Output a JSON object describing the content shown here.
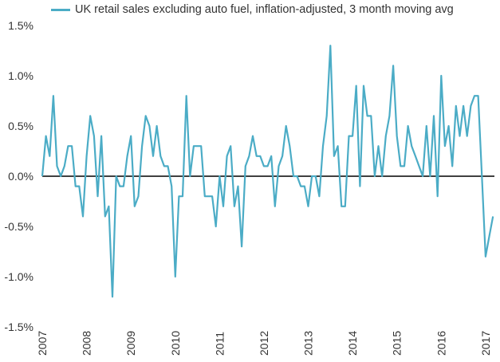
{
  "chart_data": {
    "type": "line",
    "title": "",
    "xlabel": "",
    "ylabel": "",
    "series": [
      {
        "name": "UK retail sales excluding auto fuel, inflation-adjusted, 3 month moving avg",
        "color": "#4bacc6",
        "x": [
          2007.0,
          2007.083,
          2007.167,
          2007.25,
          2007.333,
          2007.417,
          2007.5,
          2007.583,
          2007.667,
          2007.75,
          2007.833,
          2007.917,
          2008.0,
          2008.083,
          2008.167,
          2008.25,
          2008.333,
          2008.417,
          2008.5,
          2008.583,
          2008.667,
          2008.75,
          2008.833,
          2008.917,
          2009.0,
          2009.083,
          2009.167,
          2009.25,
          2009.333,
          2009.417,
          2009.5,
          2009.583,
          2009.667,
          2009.75,
          2009.833,
          2009.917,
          2010.0,
          2010.083,
          2010.167,
          2010.25,
          2010.333,
          2010.417,
          2010.5,
          2010.583,
          2010.667,
          2010.75,
          2010.833,
          2010.917,
          2011.0,
          2011.083,
          2011.167,
          2011.25,
          2011.333,
          2011.417,
          2011.5,
          2011.583,
          2011.667,
          2011.75,
          2011.833,
          2011.917,
          2012.0,
          2012.083,
          2012.167,
          2012.25,
          2012.333,
          2012.417,
          2012.5,
          2012.583,
          2012.667,
          2012.75,
          2012.833,
          2012.917,
          2013.0,
          2013.083,
          2013.167,
          2013.25,
          2013.333,
          2013.417,
          2013.5,
          2013.583,
          2013.667,
          2013.75,
          2013.833,
          2013.917,
          2014.0,
          2014.083,
          2014.167,
          2014.25,
          2014.333,
          2014.417,
          2014.5,
          2014.583,
          2014.667,
          2014.75,
          2014.833,
          2014.917,
          2015.0,
          2015.083,
          2015.167,
          2015.25,
          2015.333,
          2015.417,
          2015.5,
          2015.583,
          2015.667,
          2015.75,
          2015.833,
          2015.917,
          2016.0,
          2016.083,
          2016.167,
          2016.25,
          2016.333,
          2016.417,
          2016.5,
          2016.583,
          2016.667,
          2016.75,
          2016.833,
          2016.917,
          2017.0,
          2017.083,
          2017.167
        ],
        "values": [
          0.0,
          0.4,
          0.2,
          0.8,
          0.1,
          0.0,
          0.1,
          0.3,
          0.3,
          -0.1,
          -0.1,
          -0.4,
          0.2,
          0.6,
          0.4,
          -0.2,
          0.4,
          -0.4,
          -0.3,
          -1.2,
          0.0,
          -0.1,
          -0.1,
          0.2,
          0.4,
          -0.3,
          -0.2,
          0.3,
          0.6,
          0.5,
          0.2,
          0.5,
          0.2,
          0.1,
          0.1,
          -0.1,
          -1.0,
          -0.2,
          -0.2,
          0.8,
          0.0,
          0.3,
          0.3,
          0.3,
          -0.2,
          -0.2,
          -0.2,
          -0.5,
          0.0,
          -0.3,
          0.2,
          0.3,
          -0.3,
          -0.1,
          -0.7,
          0.1,
          0.2,
          0.4,
          0.2,
          0.2,
          0.1,
          0.1,
          0.2,
          -0.3,
          0.1,
          0.2,
          0.5,
          0.3,
          0.0,
          0.0,
          -0.1,
          -0.1,
          -0.3,
          0.0,
          0.0,
          -0.2,
          0.3,
          0.6,
          1.3,
          0.2,
          0.3,
          -0.3,
          -0.3,
          0.4,
          0.4,
          0.9,
          -0.1,
          0.9,
          0.6,
          0.6,
          0.0,
          0.3,
          0.0,
          0.4,
          0.6,
          1.1,
          0.4,
          0.1,
          0.1,
          0.5,
          0.3,
          0.2,
          0.1,
          0.0,
          0.5,
          0.0,
          0.6,
          -0.2,
          1.0,
          0.3,
          0.5,
          0.1,
          0.7,
          0.4,
          0.7,
          0.4,
          0.7,
          0.8,
          0.8,
          0.0,
          -0.8,
          -0.6,
          -0.4
        ]
      }
    ],
    "xlim": [
      2007,
      2017.2
    ],
    "ylim": [
      -1.5,
      1.5
    ],
    "y_ticks": [
      "1.5%",
      "1.0%",
      "0.5%",
      "0.0%",
      "-0.5%",
      "-1.0%",
      "-1.5%"
    ],
    "y_tick_values": [
      1.5,
      1.0,
      0.5,
      0.0,
      -0.5,
      -1.0,
      -1.5
    ],
    "x_ticks": [
      "2007",
      "2008",
      "2009",
      "2010",
      "2011",
      "2012",
      "2013",
      "2014",
      "2015",
      "2016",
      "2017"
    ],
    "x_tick_values": [
      2007,
      2008,
      2009,
      2010,
      2011,
      2012,
      2013,
      2014,
      2015,
      2016,
      2017
    ],
    "grid": false,
    "zero_line": true,
    "legend_position": "top-left"
  }
}
